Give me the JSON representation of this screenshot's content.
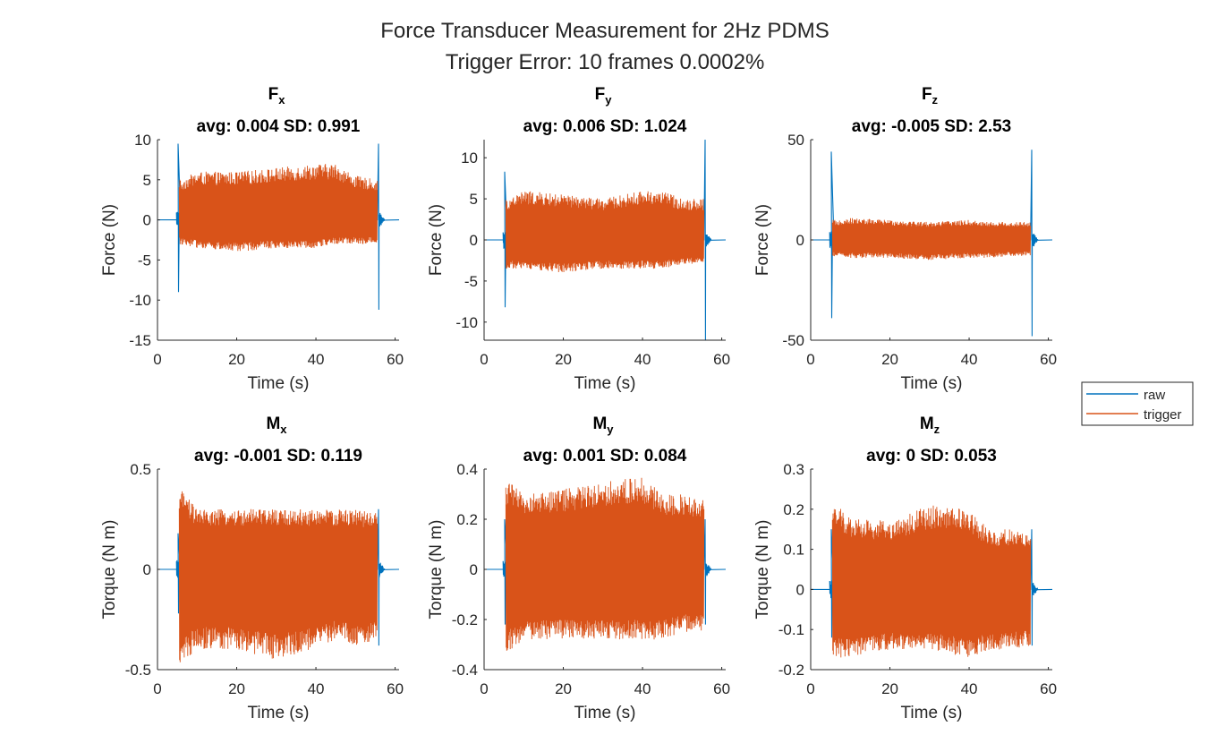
{
  "figure": {
    "title_line1": "Force Transducer Measurement for 2Hz PDMS",
    "title_line2": "Trigger Error: 10 frames 0.0002%"
  },
  "legend": {
    "entries": [
      {
        "label": "raw",
        "color": "#0072BD"
      },
      {
        "label": "trigger",
        "color": "#D95319"
      }
    ]
  },
  "chart_data": [
    {
      "type": "line",
      "title_main": "F",
      "title_sub": "x",
      "subtitle": "avg: 0.004 SD: 0.991",
      "xlabel": "Time (s)",
      "ylabel": "Force (N)",
      "xlim": [
        0,
        61
      ],
      "ylim": [
        -15,
        10
      ],
      "xticks": [
        0,
        20,
        40,
        60
      ],
      "yticks": [
        -15,
        -10,
        -5,
        0,
        5,
        10
      ],
      "series": [
        {
          "name": "raw",
          "color": "#0072BD",
          "x": [
            0,
            5,
            5.2,
            5.5,
            55.8,
            56.2,
            56.5,
            61
          ],
          "y": [
            0,
            0,
            9.5,
            -9,
            9.5,
            -11.2,
            0,
            0
          ]
        },
        {
          "name": "trigger",
          "color": "#D95319",
          "x": [
            5.5,
            10,
            20,
            30,
            40,
            45,
            50,
            55.5
          ],
          "y_upper": [
            5,
            6,
            6,
            6.5,
            7,
            7,
            5.5,
            5
          ],
          "y_lower": [
            -3,
            -3.5,
            -4,
            -3.5,
            -3.5,
            -3,
            -3,
            -3
          ]
        }
      ]
    },
    {
      "type": "line",
      "title_main": "F",
      "title_sub": "y",
      "subtitle": "avg: 0.006 SD: 1.024",
      "xlabel": "Time (s)",
      "ylabel": "Force (N)",
      "xlim": [
        0,
        61
      ],
      "ylim": [
        -12.2,
        12.2
      ],
      "xticks": [
        0,
        20,
        40,
        60
      ],
      "yticks": [
        -10,
        -5,
        0,
        5,
        10
      ],
      "series": [
        {
          "name": "raw",
          "color": "#0072BD",
          "x": [
            0,
            5,
            5.2,
            5.5,
            55.8,
            56.2,
            56.5,
            61
          ],
          "y": [
            0,
            0,
            8.3,
            -8.2,
            12.2,
            -12.2,
            0,
            0
          ]
        },
        {
          "name": "trigger",
          "color": "#D95319",
          "x": [
            5.5,
            10,
            20,
            30,
            40,
            45,
            50,
            55.5
          ],
          "y_upper": [
            5,
            6,
            5.5,
            5,
            6,
            6,
            5,
            5
          ],
          "y_lower": [
            -3.5,
            -3.5,
            -4,
            -3.5,
            -3.5,
            -3.5,
            -3,
            -3
          ]
        }
      ]
    },
    {
      "type": "line",
      "title_main": "F",
      "title_sub": "z",
      "subtitle": "avg: -0.005 SD: 2.53",
      "xlabel": "Time (s)",
      "ylabel": "Force (N)",
      "xlim": [
        0,
        61
      ],
      "ylim": [
        -50,
        50
      ],
      "xticks": [
        0,
        20,
        40,
        60
      ],
      "yticks": [
        -50,
        0,
        50
      ],
      "series": [
        {
          "name": "raw",
          "color": "#0072BD",
          "x": [
            0,
            5,
            5.2,
            5.5,
            55.8,
            56.2,
            56.5,
            61
          ],
          "y": [
            0,
            0,
            44,
            -39,
            45,
            -48,
            0,
            0
          ]
        },
        {
          "name": "trigger",
          "color": "#D95319",
          "x": [
            5.5,
            10,
            20,
            30,
            40,
            45,
            50,
            55.5
          ],
          "y_upper": [
            10,
            11,
            10,
            9,
            10,
            9,
            9,
            9
          ],
          "y_lower": [
            -8,
            -9,
            -9,
            -10,
            -9,
            -9,
            -8,
            -8
          ]
        }
      ]
    },
    {
      "type": "line",
      "title_main": "M",
      "title_sub": "x",
      "subtitle": "avg: -0.001 SD: 0.119",
      "xlabel": "Time (s)",
      "ylabel": "Torque (N m)",
      "xlim": [
        0,
        61
      ],
      "ylim": [
        -0.5,
        0.5
      ],
      "xticks": [
        0,
        20,
        40,
        60
      ],
      "yticks": [
        -0.5,
        0,
        0.5
      ],
      "series": [
        {
          "name": "raw",
          "color": "#0072BD",
          "x": [
            0,
            5,
            5.2,
            5.5,
            55.8,
            56.2,
            56.5,
            61
          ],
          "y": [
            0,
            0,
            0.18,
            -0.22,
            0.3,
            -0.38,
            0,
            0
          ]
        },
        {
          "name": "trigger",
          "color": "#D95319",
          "x": [
            5.5,
            10,
            20,
            30,
            40,
            45,
            50,
            55.5
          ],
          "y_upper": [
            0.41,
            0.3,
            0.3,
            0.3,
            0.3,
            0.3,
            0.3,
            0.28
          ],
          "y_lower": [
            -0.48,
            -0.4,
            -0.4,
            -0.45,
            -0.4,
            -0.35,
            -0.38,
            -0.35
          ]
        }
      ]
    },
    {
      "type": "line",
      "title_main": "M",
      "title_sub": "y",
      "subtitle": "avg: 0.001 SD: 0.084",
      "xlabel": "Time (s)",
      "ylabel": "Torque (N m)",
      "xlim": [
        0,
        61
      ],
      "ylim": [
        -0.4,
        0.4
      ],
      "xticks": [
        0,
        20,
        40,
        60
      ],
      "yticks": [
        -0.4,
        -0.2,
        0,
        0.2,
        0.4
      ],
      "series": [
        {
          "name": "raw",
          "color": "#0072BD",
          "x": [
            0,
            5,
            5.2,
            5.5,
            55.8,
            56.2,
            56.5,
            61
          ],
          "y": [
            0,
            0,
            0.2,
            -0.22,
            0.2,
            -0.22,
            0,
            0
          ]
        },
        {
          "name": "trigger",
          "color": "#D95319",
          "x": [
            5.5,
            10,
            20,
            30,
            40,
            45,
            50,
            55.5
          ],
          "y_upper": [
            0.36,
            0.3,
            0.32,
            0.35,
            0.37,
            0.3,
            0.3,
            0.28
          ],
          "y_lower": [
            -0.34,
            -0.28,
            -0.28,
            -0.28,
            -0.28,
            -0.28,
            -0.25,
            -0.25
          ]
        }
      ]
    },
    {
      "type": "line",
      "title_main": "M",
      "title_sub": "z",
      "subtitle": "avg: 0 SD: 0.053",
      "xlabel": "Time (s)",
      "ylabel": "Torque (N m)",
      "xlim": [
        0,
        61
      ],
      "ylim": [
        -0.2,
        0.3
      ],
      "xticks": [
        0,
        20,
        40,
        60
      ],
      "yticks": [
        -0.2,
        -0.1,
        0,
        0.1,
        0.2,
        0.3
      ],
      "series": [
        {
          "name": "raw",
          "color": "#0072BD",
          "x": [
            0,
            5,
            5.2,
            5.5,
            55.8,
            56.2,
            56.5,
            61
          ],
          "y": [
            0,
            0,
            0.15,
            -0.12,
            0.15,
            -0.14,
            0,
            0
          ]
        },
        {
          "name": "trigger",
          "color": "#D95319",
          "x": [
            5.5,
            10,
            20,
            30,
            40,
            45,
            50,
            55.5
          ],
          "y_upper": [
            0.22,
            0.18,
            0.17,
            0.21,
            0.2,
            0.15,
            0.15,
            0.14
          ],
          "y_lower": [
            -0.17,
            -0.17,
            -0.15,
            -0.15,
            -0.17,
            -0.15,
            -0.15,
            -0.14
          ]
        }
      ]
    }
  ]
}
